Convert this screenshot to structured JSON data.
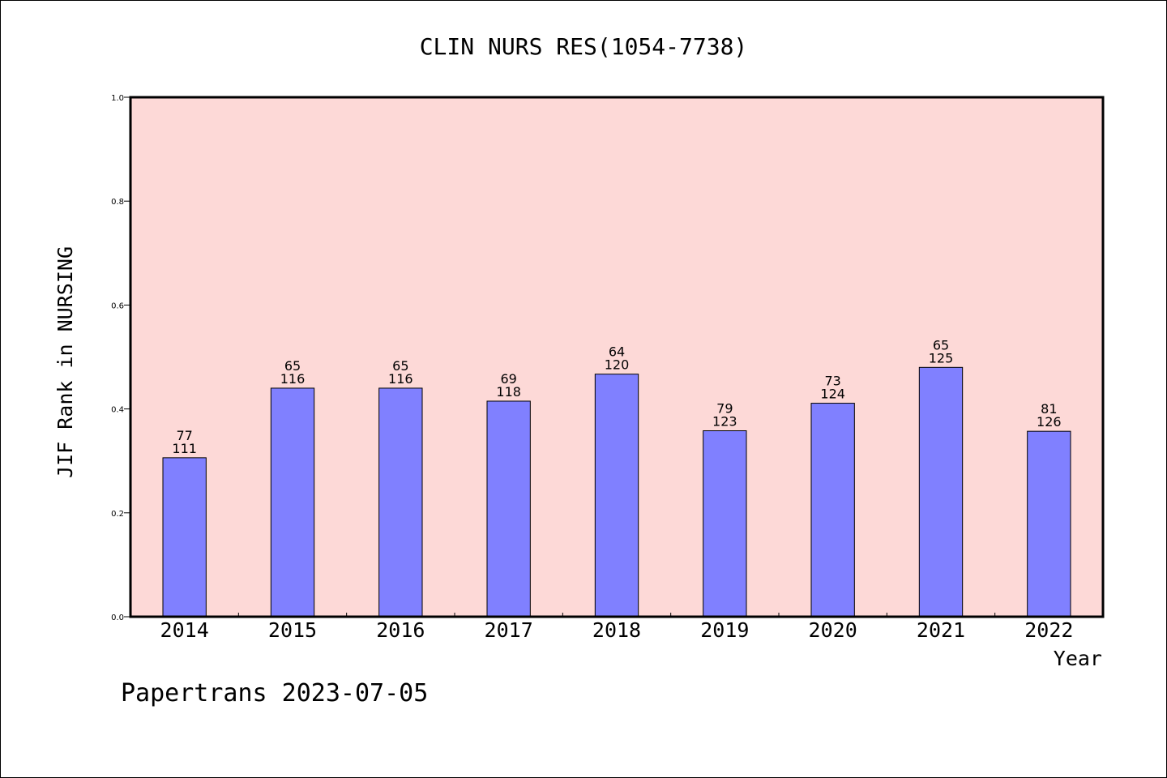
{
  "chart_data": {
    "type": "bar",
    "title": "CLIN NURS RES(1054-7738)",
    "xlabel": "Year",
    "ylabel": "JIF Rank in NURSING",
    "ylim": [
      0,
      1.0
    ],
    "yticks": [
      "0.0",
      "0.2",
      "0.4",
      "0.6",
      "0.8",
      "1.0"
    ],
    "grid": false,
    "categories": [
      "2014",
      "2015",
      "2016",
      "2017",
      "2018",
      "2019",
      "2020",
      "2021",
      "2022"
    ],
    "values": [
      0.306,
      0.44,
      0.44,
      0.415,
      0.467,
      0.358,
      0.411,
      0.48,
      0.357
    ],
    "rank": [
      "77",
      "65",
      "65",
      "69",
      "64",
      "79",
      "73",
      "65",
      "81"
    ],
    "total": [
      "111",
      "116",
      "116",
      "118",
      "120",
      "123",
      "124",
      "125",
      "126"
    ],
    "colors": {
      "plot_background": "#fdd9d7",
      "bar": "#8080ff",
      "axis": "#000000"
    }
  },
  "footer": "Papertrans 2023-07-05"
}
